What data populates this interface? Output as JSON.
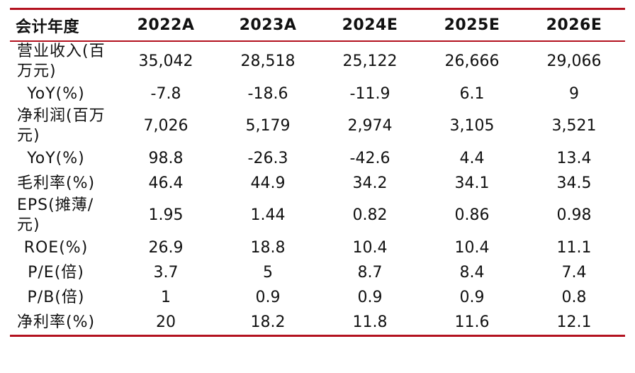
{
  "table": {
    "header": [
      "会计年度",
      "2022A",
      "2023A",
      "2024E",
      "2025E",
      "2026E"
    ],
    "rows": [
      {
        "label": "营业收入(百万元)",
        "values": [
          "35,042",
          "28,518",
          "25,122",
          "26,666",
          "29,066"
        ]
      },
      {
        "label": "YoY(%)",
        "values": [
          "-7.8",
          "-18.6",
          "-11.9",
          "6.1",
          "9"
        ]
      },
      {
        "label": "净利润(百万元)",
        "values": [
          "7,026",
          "5,179",
          "2,974",
          "3,105",
          "3,521"
        ]
      },
      {
        "label": "YoY(%)",
        "values": [
          "98.8",
          "-26.3",
          "-42.6",
          "4.4",
          "13.4"
        ]
      },
      {
        "label": "毛利率(%)",
        "values": [
          "46.4",
          "44.9",
          "34.2",
          "34.1",
          "34.5"
        ]
      },
      {
        "label": "EPS(摊薄/元)",
        "values": [
          "1.95",
          "1.44",
          "0.82",
          "0.86",
          "0.98"
        ]
      },
      {
        "label": "ROE(%)",
        "values": [
          "26.9",
          "18.8",
          "10.4",
          "10.4",
          "11.1"
        ]
      },
      {
        "label": "P/E(倍)",
        "values": [
          "3.7",
          "5",
          "8.7",
          "8.4",
          "7.4"
        ]
      },
      {
        "label": "P/B(倍)",
        "values": [
          "1",
          "0.9",
          "0.9",
          "0.9",
          "0.8"
        ]
      },
      {
        "label": "净利率(%)",
        "values": [
          "20",
          "18.2",
          "11.8",
          "11.6",
          "12.1"
        ]
      }
    ]
  },
  "colors": {
    "rule": "#b3121f",
    "text": "#111111"
  }
}
